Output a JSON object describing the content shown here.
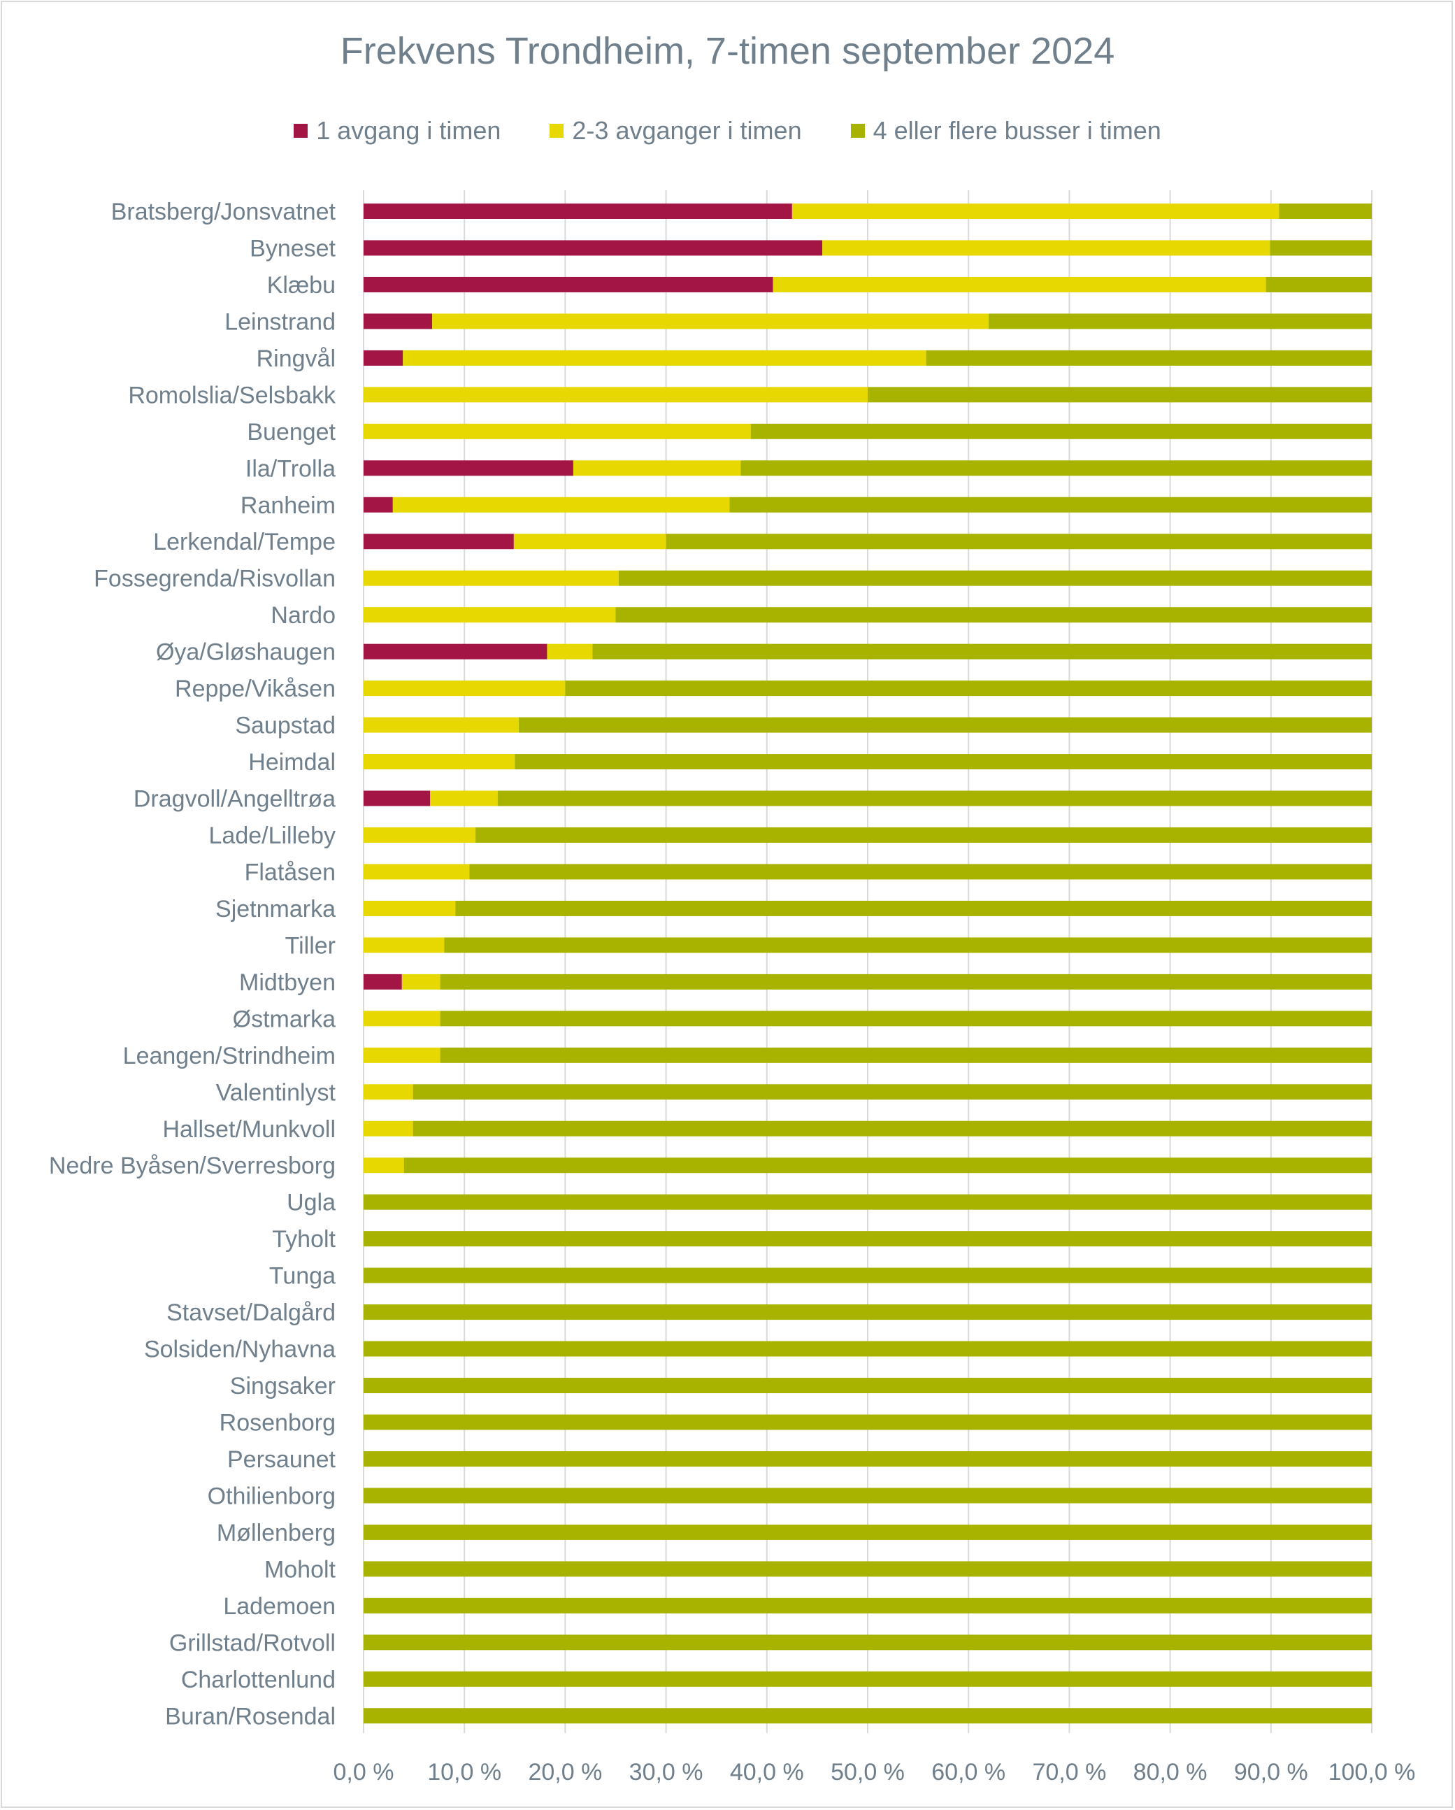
{
  "chart_data": {
    "type": "bar",
    "orientation": "horizontal",
    "stacked": "percent",
    "title": "Frekvens Trondheim, 7-timen september 2024",
    "legend_position": "top",
    "xlim": [
      0,
      100
    ],
    "x_ticks": [
      "0,0 %",
      "10,0 %",
      "20,0 %",
      "30,0 %",
      "40,0 %",
      "50,0 %",
      "60,0 %",
      "70,0 %",
      "80,0 %",
      "90,0 %",
      "100,0 %"
    ],
    "grid": true,
    "colors": [
      "#a31545",
      "#e6d800",
      "#a8b300"
    ],
    "categories": [
      "Bratsberg/Jonsvatnet",
      "Byneset",
      "Klæbu",
      "Leinstrand",
      "Ringvål",
      "Romolslia/Selsbakk",
      "Buenget",
      "Ila/Trolla",
      "Ranheim",
      "Lerkendal/Tempe",
      "Fossegrenda/Risvollan",
      "Nardo",
      "Øya/Gløshaugen",
      "Reppe/Vikåsen",
      "Saupstad",
      "Heimdal",
      "Dragvoll/Angelltrøa",
      "Lade/Lilleby",
      "Flatåsen",
      "Sjetnmarka",
      "Tiller",
      "Midtbyen",
      "Østmarka",
      "Leangen/Strindheim",
      "Valentinlyst",
      "Hallset/Munkvoll",
      "Nedre Byåsen/Sverresborg",
      "Ugla",
      "Tyholt",
      "Tunga",
      "Stavset/Dalgård",
      "Solsiden/Nyhavna",
      "Singsaker",
      "Rosenborg",
      "Persaunet",
      "Othilienborg",
      "Møllenberg",
      "Moholt",
      "Lademoen",
      "Grillstad/Rotvoll",
      "Charlottenlund",
      "Buran/Rosendal"
    ],
    "series": [
      {
        "name": "1 avgang i timen",
        "values": [
          42.5,
          45.5,
          40.6,
          6.8,
          3.9,
          0,
          0,
          20.8,
          2.9,
          14.9,
          0,
          0,
          18.2,
          0,
          0,
          0,
          6.6,
          0,
          0,
          0,
          0,
          3.8,
          0,
          0,
          0,
          0,
          0,
          0,
          0,
          0,
          0,
          0,
          0,
          0,
          0,
          0,
          0,
          0,
          0,
          0,
          0,
          0
        ]
      },
      {
        "name": "2-3 avganger i timen",
        "values": [
          48.3,
          44.4,
          48.9,
          55.2,
          51.9,
          50.0,
          38.4,
          16.6,
          33.4,
          15.1,
          25.3,
          25.0,
          4.5,
          20.0,
          15.4,
          15.0,
          6.7,
          11.1,
          10.5,
          9.1,
          8.0,
          3.8,
          7.6,
          7.6,
          4.9,
          4.9,
          4.0,
          0,
          0,
          0,
          0,
          0,
          0,
          0,
          0,
          0,
          0,
          0,
          0,
          0,
          0,
          0
        ]
      },
      {
        "name": "4 eller flere busser i timen",
        "values": [
          9.2,
          10.1,
          10.5,
          38.0,
          44.2,
          50.0,
          61.6,
          62.6,
          63.7,
          70.0,
          74.7,
          75.0,
          77.3,
          80.0,
          84.6,
          85.0,
          86.7,
          88.9,
          89.5,
          90.9,
          92.0,
          92.4,
          92.4,
          92.4,
          95.1,
          95.1,
          96.0,
          100,
          100,
          100,
          100,
          100,
          100,
          100,
          100,
          100,
          100,
          100,
          100,
          100,
          100,
          100
        ]
      }
    ]
  }
}
